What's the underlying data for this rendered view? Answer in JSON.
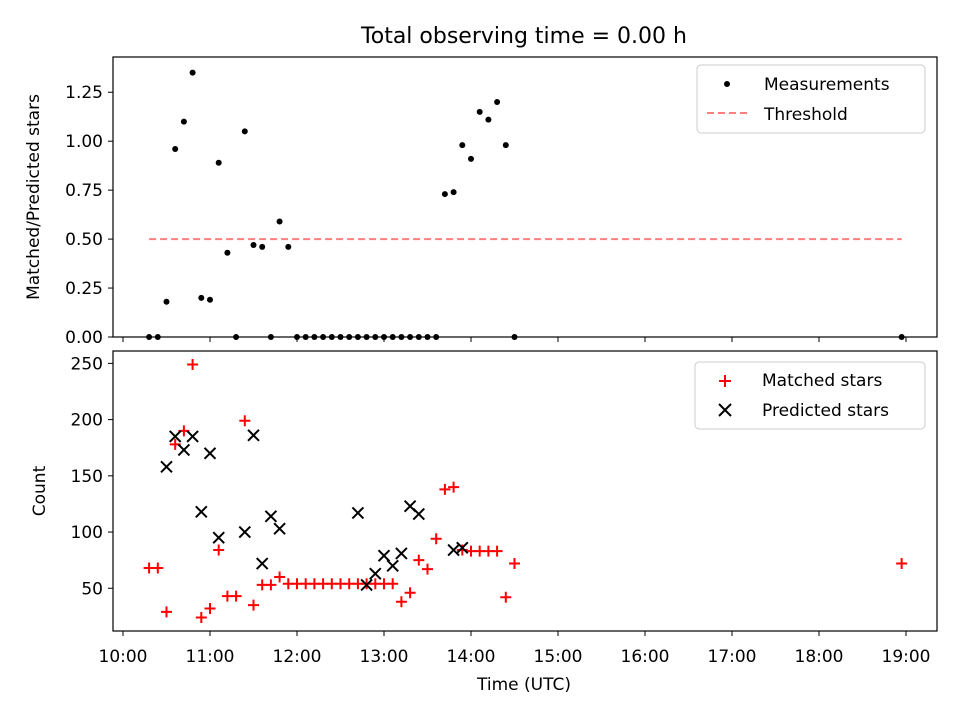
{
  "title": "Total observing time = 0.00 h",
  "chart_data": [
    {
      "type": "scatter",
      "ylabel": "Matched/Predicted stars",
      "ylim": [
        0,
        1.43
      ],
      "yticks": [
        "0.00",
        "0.25",
        "0.50",
        "0.75",
        "1.00",
        "1.25"
      ],
      "legend": {
        "placement": "top-right",
        "entries": [
          "Measurements",
          "Threshold"
        ]
      },
      "threshold": {
        "name": "Threshold",
        "value": 0.5,
        "x_start": "10:18",
        "x_end": "18:57",
        "color": "#ff7f7f"
      },
      "series": [
        {
          "name": "Measurements",
          "marker": "dot",
          "color": "#000000",
          "x": [
            "10:18",
            "10:24",
            "10:30",
            "10:36",
            "10:42",
            "10:48",
            "10:54",
            "11:00",
            "11:06",
            "11:12",
            "11:18",
            "11:24",
            "11:30",
            "11:36",
            "11:42",
            "11:48",
            "11:54",
            "12:00",
            "12:06",
            "12:12",
            "12:18",
            "12:24",
            "12:30",
            "12:36",
            "12:42",
            "12:48",
            "12:54",
            "13:00",
            "13:06",
            "13:12",
            "13:18",
            "13:24",
            "13:30",
            "13:36",
            "13:42",
            "13:48",
            "13:54",
            "14:00",
            "14:06",
            "14:12",
            "14:18",
            "14:24",
            "14:30",
            "18:57"
          ],
          "y": [
            0,
            0,
            0.18,
            0.96,
            1.1,
            1.35,
            0.2,
            0.19,
            0.89,
            0.43,
            0,
            1.05,
            0.47,
            0.46,
            0,
            0.59,
            0.46,
            0,
            0,
            0,
            0,
            0,
            0,
            0,
            0,
            0,
            0,
            0,
            0,
            0,
            0,
            0,
            0,
            0,
            0.73,
            0.74,
            0.98,
            0.91,
            1.15,
            1.11,
            1.2,
            0.98,
            0,
            0
          ]
        }
      ]
    },
    {
      "type": "scatter",
      "xlabel": "Time (UTC)",
      "ylabel": "Count",
      "ylim": [
        12,
        261
      ],
      "yticks": [
        "50",
        "100",
        "150",
        "200",
        "250"
      ],
      "xticks": [
        "10:00",
        "11:00",
        "12:00",
        "13:00",
        "14:00",
        "15:00",
        "16:00",
        "17:00",
        "18:00",
        "19:00"
      ],
      "legend": {
        "placement": "top-right",
        "entries": [
          "Matched stars",
          "Predicted stars"
        ]
      },
      "series": [
        {
          "name": "Matched stars",
          "marker": "plus",
          "color": "#ff0000",
          "x": [
            "10:18",
            "10:24",
            "10:30",
            "10:36",
            "10:42",
            "10:48",
            "10:54",
            "11:00",
            "11:06",
            "11:12",
            "11:18",
            "11:24",
            "11:30",
            "11:36",
            "11:42",
            "11:48",
            "11:54",
            "12:00",
            "12:06",
            "12:12",
            "12:18",
            "12:24",
            "12:30",
            "12:36",
            "12:42",
            "12:48",
            "12:54",
            "13:00",
            "13:06",
            "13:12",
            "13:18",
            "13:24",
            "13:30",
            "13:36",
            "13:42",
            "13:48",
            "13:54",
            "14:00",
            "14:06",
            "14:12",
            "14:18",
            "14:24",
            "14:30",
            "18:57"
          ],
          "y": [
            68,
            68,
            29,
            178,
            190,
            249,
            24,
            32,
            84,
            43,
            43,
            199,
            35,
            53,
            53,
            60,
            54,
            54,
            54,
            54,
            54,
            54,
            54,
            54,
            54,
            54,
            54,
            54,
            54,
            38,
            46,
            75,
            67,
            94,
            138,
            140,
            84,
            83,
            83,
            83,
            83,
            42,
            72,
            72
          ]
        },
        {
          "name": "Predicted stars",
          "marker": "x",
          "color": "#000000",
          "x": [
            "10:30",
            "10:36",
            "10:42",
            "10:48",
            "10:54",
            "11:00",
            "11:06",
            "11:24",
            "11:30",
            "11:36",
            "11:42",
            "11:48",
            "12:42",
            "12:48",
            "12:54",
            "13:00",
            "13:06",
            "13:12",
            "13:18",
            "13:24",
            "13:48",
            "13:54"
          ],
          "y": [
            158,
            185,
            173,
            185,
            118,
            170,
            95,
            100,
            186,
            72,
            114,
            103,
            117,
            53,
            63,
            79,
            70,
            81,
            123,
            116,
            84,
            86
          ]
        }
      ]
    }
  ]
}
